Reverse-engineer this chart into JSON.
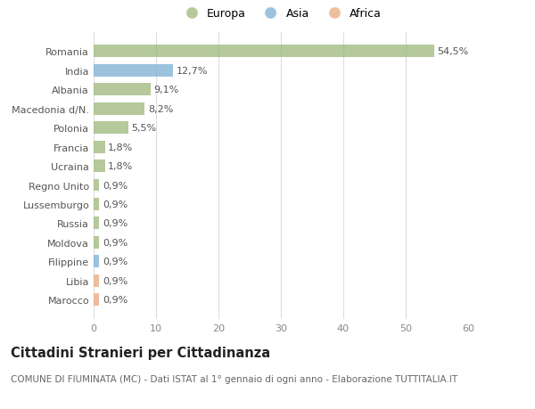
{
  "categories": [
    "Marocco",
    "Libia",
    "Filippine",
    "Moldova",
    "Russia",
    "Lussemburgo",
    "Regno Unito",
    "Ucraina",
    "Francia",
    "Polonia",
    "Macedonia d/N.",
    "Albania",
    "India",
    "Romania"
  ],
  "values": [
    0.9,
    0.9,
    0.9,
    0.9,
    0.9,
    0.9,
    0.9,
    1.8,
    1.8,
    5.5,
    8.2,
    9.1,
    12.7,
    54.5
  ],
  "labels": [
    "0,9%",
    "0,9%",
    "0,9%",
    "0,9%",
    "0,9%",
    "0,9%",
    "0,9%",
    "1,8%",
    "1,8%",
    "5,5%",
    "8,2%",
    "9,1%",
    "12,7%",
    "54,5%"
  ],
  "colors": [
    "#e8a97e",
    "#e8a97e",
    "#7bafd4",
    "#9cb87a",
    "#9cb87a",
    "#9cb87a",
    "#9cb87a",
    "#9cb87a",
    "#9cb87a",
    "#9cb87a",
    "#9cb87a",
    "#9cb87a",
    "#7bafd4",
    "#9cb87a"
  ],
  "legend": [
    {
      "label": "Europa",
      "color": "#9cb87a"
    },
    {
      "label": "Asia",
      "color": "#7bafd4"
    },
    {
      "label": "Africa",
      "color": "#e8a97e"
    }
  ],
  "xlim": [
    0,
    60
  ],
  "xticks": [
    0,
    10,
    20,
    30,
    40,
    50,
    60
  ],
  "title": "Cittadini Stranieri per Cittadinanza",
  "subtitle": "COMUNE DI FIUMINATA (MC) - Dati ISTAT al 1° gennaio di ogni anno - Elaborazione TUTTITALIA.IT",
  "bg_color": "#ffffff",
  "grid_color": "#dddddd",
  "bar_alpha": 0.75,
  "label_fontsize": 8,
  "tick_fontsize": 8,
  "title_fontsize": 10.5,
  "subtitle_fontsize": 7.5,
  "ylabel_color": "#555555",
  "xlabel_color": "#888888"
}
